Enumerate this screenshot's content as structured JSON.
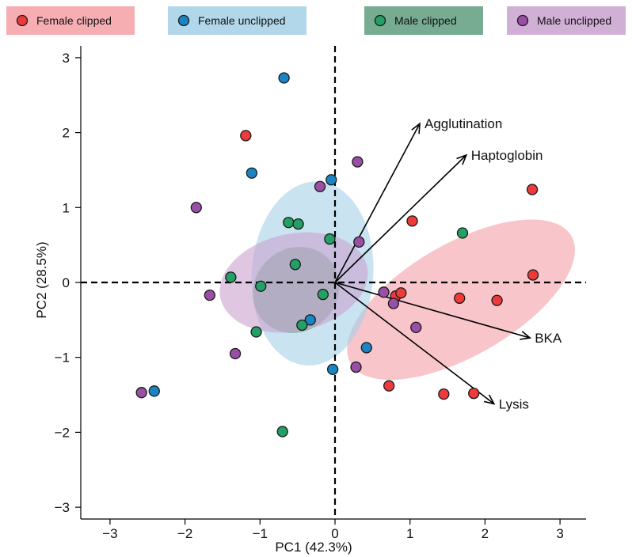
{
  "chart_data": {
    "type": "scatter",
    "xlabel": "PC1 (42.3%)",
    "ylabel": "PC2 (28.5%)",
    "xlim": [
      -3.3,
      3.3
    ],
    "ylim": [
      -3.3,
      3.3
    ],
    "xticks": [
      -3,
      -2,
      -1,
      0,
      1,
      2,
      3
    ],
    "yticks": [
      -3,
      -2,
      -1,
      0,
      1,
      2,
      3
    ],
    "xtick_labels": [
      "−3",
      "−2",
      "−1",
      "0",
      "1",
      "2",
      "3"
    ],
    "ytick_labels": [
      "−3",
      "−2",
      "−1",
      "0",
      "1",
      "2",
      "3"
    ],
    "grid": false,
    "reference_lines": "dashed lines at x = 0 and y = 0",
    "legend": "top",
    "series": [
      {
        "name": "Female clipped",
        "color": "#ee3a3a",
        "fill": "#f4a0a6",
        "points": [
          [
            -1.19,
            1.96
          ],
          [
            2.63,
            1.24
          ],
          [
            1.03,
            0.82
          ],
          [
            2.64,
            0.1
          ],
          [
            0.81,
            -0.18
          ],
          [
            0.88,
            -0.14
          ],
          [
            1.66,
            -0.21
          ],
          [
            2.16,
            -0.24
          ],
          [
            0.72,
            -1.38
          ],
          [
            1.45,
            -1.49
          ],
          [
            1.85,
            -1.48
          ]
        ],
        "ellipse": {
          "cx": 1.68,
          "cy": -0.23,
          "rx": 1.7,
          "ry": 0.75,
          "angle": -30
        }
      },
      {
        "name": "Female unclipped",
        "color": "#1a85c5",
        "fill": "#a5d0e6",
        "points": [
          [
            -0.68,
            2.73
          ],
          [
            -1.11,
            1.46
          ],
          [
            -0.05,
            1.37
          ],
          [
            -0.33,
            -0.5
          ],
          [
            0.42,
            -0.87
          ],
          [
            -0.03,
            -1.16
          ],
          [
            -2.41,
            -1.45
          ]
        ],
        "ellipse": {
          "cx": -0.3,
          "cy": 0.12,
          "rx": 1.23,
          "ry": 0.81,
          "angle": -86
        }
      },
      {
        "name": "Male clipped",
        "color": "#23a065",
        "fill": "#5f9e80",
        "points": [
          [
            -0.62,
            0.8
          ],
          [
            -0.49,
            0.78
          ],
          [
            -0.07,
            0.58
          ],
          [
            -0.53,
            0.24
          ],
          [
            -1.39,
            0.07
          ],
          [
            -0.99,
            -0.05
          ],
          [
            -0.16,
            -0.16
          ],
          [
            -0.44,
            -0.57
          ],
          [
            -1.05,
            -0.66
          ],
          [
            1.7,
            0.66
          ],
          [
            -0.7,
            -1.99
          ]
        ],
        "ellipse": {
          "cx": -0.52,
          "cy": -0.1,
          "rx": 0.6,
          "ry": 0.55,
          "angle": -45
        }
      },
      {
        "name": "Male unclipped",
        "color": "#9a4fa6",
        "fill": "#c9a2cf",
        "points": [
          [
            0.3,
            1.61
          ],
          [
            -0.2,
            1.28
          ],
          [
            -1.85,
            1.0
          ],
          [
            0.32,
            0.54
          ],
          [
            0.65,
            -0.13
          ],
          [
            0.78,
            -0.28
          ],
          [
            1.08,
            -0.6
          ],
          [
            -1.67,
            -0.17
          ],
          [
            -1.33,
            -0.95
          ],
          [
            0.28,
            -1.13
          ],
          [
            -2.58,
            -1.47
          ]
        ],
        "ellipse": {
          "cx": -0.55,
          "cy": 0.0,
          "rx": 1.0,
          "ry": 0.65,
          "angle": -12
        }
      }
    ],
    "loadings": [
      {
        "name": "Agglutination",
        "x": 1.13,
        "y": 2.12
      },
      {
        "name": "Haptoglobin",
        "x": 1.75,
        "y": 1.7
      },
      {
        "name": "BKA",
        "x": 2.6,
        "y": -0.74
      },
      {
        "name": "Lysis",
        "x": 2.12,
        "y": -1.62
      }
    ]
  }
}
